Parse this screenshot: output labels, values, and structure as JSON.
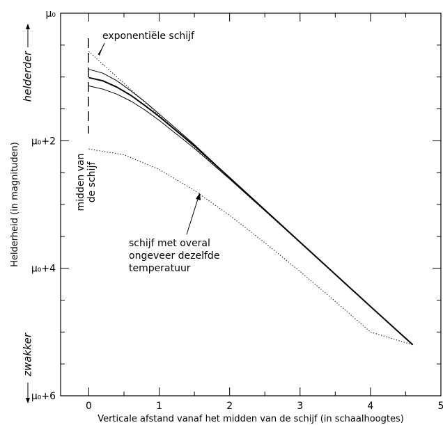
{
  "chart_data": {
    "type": "line",
    "xlabel": "Verticale afstand vanaf het midden van de schijf (in schaalhoogtes)",
    "ylabel": "Helderheid (in magnituden)",
    "xlim": [
      -0.4,
      5
    ],
    "ylim": [
      0,
      6
    ],
    "y_inverted": true,
    "grid": false,
    "x_ticks": [
      "0",
      "1",
      "2",
      "3",
      "4",
      "5"
    ],
    "x_tick_values": [
      0,
      1,
      2,
      3,
      4,
      5
    ],
    "y_ticks": [
      "μ₀",
      "μ₀+2",
      "μ₀+4",
      "μ₀+6"
    ],
    "y_tick_values": [
      0,
      2,
      4,
      6
    ],
    "side_labels": {
      "top": "helderder",
      "bottom": "zwakker"
    },
    "annotations": {
      "exponential": "exponentiële schijf",
      "midplane": [
        "midden van",
        "de schijf"
      ],
      "isothermal": [
        "schijf met overal",
        "ongeveer dezelfde",
        "temperatuur"
      ]
    },
    "series": [
      {
        "style": "dotted",
        "x": [
          0,
          1,
          2,
          3,
          4,
          4.6
        ],
        "y": [
          0.6,
          1.6,
          2.6,
          3.6,
          4.6,
          5.2
        ]
      },
      {
        "style": "solid-thin",
        "x": [
          0,
          0.2,
          0.4,
          0.6,
          0.8,
          1.0,
          1.5,
          2.0,
          3.0,
          4.0,
          4.6
        ],
        "y": [
          0.88,
          0.94,
          1.06,
          1.22,
          1.39,
          1.58,
          2.06,
          2.58,
          3.59,
          4.6,
          5.2
        ]
      },
      {
        "style": "solid-thick",
        "x": [
          0,
          0.2,
          0.4,
          0.6,
          0.8,
          1.0,
          1.5,
          2.0,
          3.0,
          4.0,
          4.6
        ],
        "y": [
          1.01,
          1.06,
          1.16,
          1.29,
          1.45,
          1.62,
          2.08,
          2.58,
          3.59,
          4.6,
          5.2
        ]
      },
      {
        "style": "solid-thin",
        "x": [
          0,
          0.2,
          0.4,
          0.6,
          0.8,
          1.0,
          1.5,
          2.0,
          3.0,
          4.0,
          4.6
        ],
        "y": [
          1.14,
          1.19,
          1.27,
          1.38,
          1.52,
          1.68,
          2.12,
          2.6,
          3.59,
          4.6,
          5.2
        ]
      },
      {
        "style": "dotted",
        "x": [
          0,
          0.5,
          1.0,
          1.5,
          2.0,
          2.5,
          3.0,
          3.5,
          4.0,
          4.6
        ],
        "y": [
          2.13,
          2.22,
          2.45,
          2.78,
          3.17,
          3.6,
          4.05,
          4.52,
          5.0,
          5.2
        ]
      }
    ]
  }
}
